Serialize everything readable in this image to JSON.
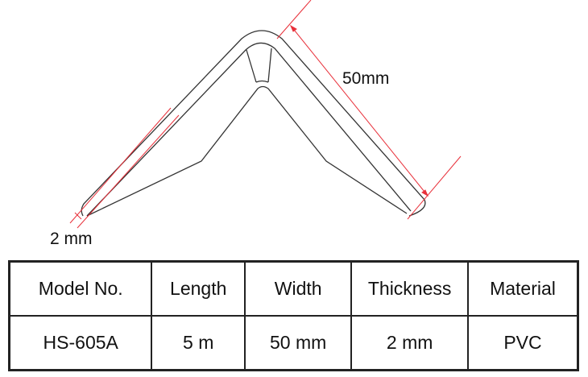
{
  "diagram": {
    "width_label": "50mm",
    "thickness_label": "2 mm",
    "dimension_color": "#e8303a",
    "outline_color": "#333333"
  },
  "table": {
    "headers": [
      "Model No.",
      "Length",
      "Width",
      "Thickness",
      "Material"
    ],
    "rows": [
      [
        "HS-605A",
        "5 m",
        "50 mm",
        "2 mm",
        "PVC"
      ]
    ]
  }
}
